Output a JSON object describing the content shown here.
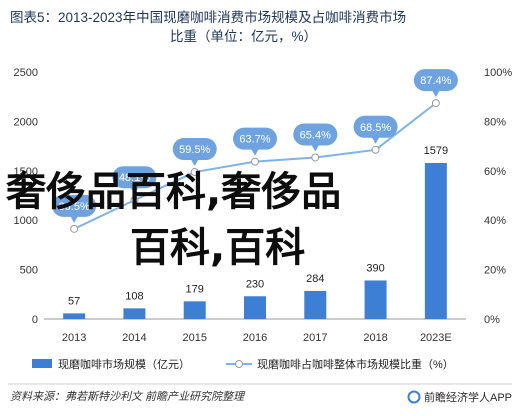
{
  "header": {
    "title_line1": "图表5：2013-2023年中国现磨咖啡消费市场规模及占咖啡消费市场",
    "title_line2": "比重（单位：亿元，%）"
  },
  "chart_data": {
    "type": "bar",
    "categories": [
      "2013",
      "2014",
      "2015",
      "2016",
      "2017",
      "2018",
      "2023E"
    ],
    "series": [
      {
        "name": "现磨咖啡市场规模（亿元）",
        "type": "bar",
        "axis": "left",
        "values": [
          57,
          108,
          179,
          230,
          284,
          390,
          1579
        ],
        "labels": [
          "57",
          "108",
          "179",
          "230",
          "284",
          "390",
          "1579"
        ],
        "color": "#3d7fd4"
      },
      {
        "name": "现磨咖啡占咖啡整体市场规模比重（%）",
        "type": "line",
        "axis": "right",
        "values": [
          36.5,
          48.1,
          59.5,
          63.7,
          65.4,
          68.5,
          87.4
        ],
        "labels": [
          "36.5%",
          "48.1%",
          "59.5%",
          "63.7%",
          "65.4%",
          "68.5%",
          "87.4%"
        ],
        "color": "#7fb2e8"
      }
    ],
    "y_left": {
      "range": [
        0,
        2500
      ],
      "ticks": [
        "0",
        "500",
        "1000",
        "1500",
        "2000",
        "2500"
      ]
    },
    "y_right": {
      "range": [
        0,
        100
      ],
      "ticks": [
        "0%",
        "20%",
        "40%",
        "60%",
        "80%",
        "100%"
      ]
    },
    "grid": false,
    "legend_position": "bottom"
  },
  "watermark": {
    "text_line1": "奢侈品百科,奢侈品",
    "text_line2": "百科,百科"
  },
  "footer": {
    "source": "资料来源：弗若斯特沙利文 前瞻产业研究院整理",
    "brand": "前瞻经济学人APP"
  },
  "colors": {
    "bar": "#3d7fd4",
    "line": "#7fb2e8",
    "callout": "#6ea3df",
    "title": "#1f3556"
  }
}
